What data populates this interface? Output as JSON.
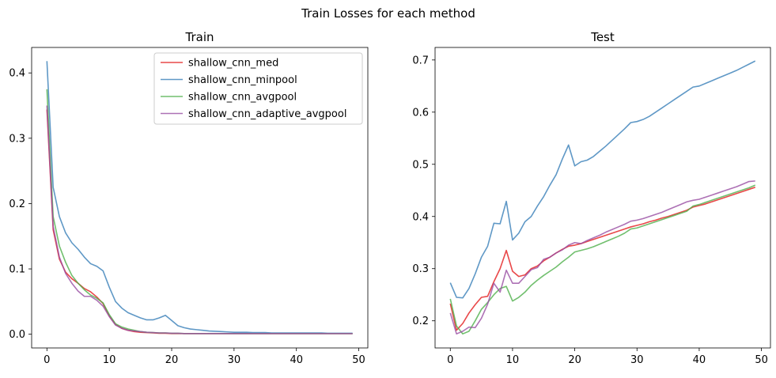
{
  "suptitle": "Train Losses for each method",
  "chart_data": [
    {
      "type": "line",
      "title": "Train",
      "xlabel": "",
      "ylabel": "",
      "xlim": [
        -2.45,
        51.45
      ],
      "ylim": [
        -0.021,
        0.439
      ],
      "x_ticks": [
        0,
        10,
        20,
        30,
        40,
        50
      ],
      "y_ticks": [
        0.0,
        0.1,
        0.2,
        0.3,
        0.4
      ],
      "y_tick_labels": [
        "0.0",
        "0.1",
        "0.2",
        "0.3",
        "0.4"
      ],
      "legend_position": "top-right",
      "grid": false,
      "series": [
        {
          "name": "shallow_cnn_med",
          "color": "#e41a1c",
          "values": [
            0.344,
            0.16,
            0.115,
            0.095,
            0.085,
            0.078,
            0.07,
            0.065,
            0.057,
            0.047,
            0.028,
            0.015,
            0.009,
            0.006,
            0.004,
            0.003,
            0.0025,
            0.002,
            0.0015,
            0.0015,
            0.001,
            0.001,
            0.001,
            0.001,
            0.001,
            0.001,
            0.001,
            0.001,
            0.001,
            0.001,
            0.001,
            0.001,
            0.001,
            0.001,
            0.001,
            0.001,
            0.001,
            0.001,
            0.001,
            0.001,
            0.001,
            0.001,
            0.001,
            0.001,
            0.001,
            0.001,
            0.001,
            0.001,
            0.001,
            0.001
          ]
        },
        {
          "name": "shallow_cnn_minpool",
          "color": "#377eb8",
          "values": [
            0.418,
            0.225,
            0.18,
            0.155,
            0.14,
            0.13,
            0.118,
            0.108,
            0.104,
            0.097,
            0.072,
            0.05,
            0.04,
            0.033,
            0.029,
            0.025,
            0.022,
            0.022,
            0.025,
            0.029,
            0.021,
            0.013,
            0.01,
            0.008,
            0.007,
            0.006,
            0.005,
            0.0045,
            0.004,
            0.0035,
            0.003,
            0.003,
            0.003,
            0.0025,
            0.0025,
            0.0025,
            0.002,
            0.002,
            0.002,
            0.002,
            0.002,
            0.002,
            0.002,
            0.002,
            0.002,
            0.0015,
            0.0015,
            0.0015,
            0.0015,
            0.0015
          ]
        },
        {
          "name": "shallow_cnn_avgpool",
          "color": "#4daf4a",
          "values": [
            0.375,
            0.18,
            0.135,
            0.11,
            0.09,
            0.078,
            0.068,
            0.06,
            0.055,
            0.048,
            0.03,
            0.016,
            0.011,
            0.008,
            0.006,
            0.004,
            0.003,
            0.0025,
            0.002,
            0.002,
            0.0015,
            0.0015,
            0.001,
            0.001,
            0.001,
            0.001,
            0.001,
            0.001,
            0.001,
            0.001,
            0.001,
            0.001,
            0.001,
            0.001,
            0.001,
            0.001,
            0.001,
            0.001,
            0.001,
            0.001,
            0.001,
            0.001,
            0.001,
            0.001,
            0.001,
            0.001,
            0.001,
            0.001,
            0.001,
            0.001
          ]
        },
        {
          "name": "shallow_cnn_adaptive_avgpool",
          "color": "#984ea3",
          "values": [
            0.35,
            0.165,
            0.118,
            0.093,
            0.078,
            0.066,
            0.058,
            0.058,
            0.052,
            0.043,
            0.027,
            0.014,
            0.009,
            0.006,
            0.005,
            0.004,
            0.003,
            0.0025,
            0.002,
            0.002,
            0.0015,
            0.0015,
            0.001,
            0.001,
            0.001,
            0.001,
            0.001,
            0.001,
            0.001,
            0.001,
            0.001,
            0.001,
            0.001,
            0.001,
            0.001,
            0.001,
            0.001,
            0.001,
            0.001,
            0.001,
            0.001,
            0.001,
            0.001,
            0.001,
            0.001,
            0.001,
            0.001,
            0.001,
            0.001,
            0.001
          ]
        }
      ]
    },
    {
      "type": "line",
      "title": "Test",
      "xlabel": "",
      "ylabel": "",
      "xlim": [
        -2.45,
        51.45
      ],
      "ylim": [
        0.148,
        0.724
      ],
      "x_ticks": [
        0,
        10,
        20,
        30,
        40,
        50
      ],
      "y_ticks": [
        0.2,
        0.3,
        0.4,
        0.5,
        0.6,
        0.7
      ],
      "y_tick_labels": [
        "0.2",
        "0.3",
        "0.4",
        "0.5",
        "0.6",
        "0.7"
      ],
      "grid": false,
      "series": [
        {
          "name": "shallow_cnn_med",
          "color": "#e41a1c",
          "values": [
            0.233,
            0.182,
            0.195,
            0.215,
            0.231,
            0.245,
            0.247,
            0.275,
            0.3,
            0.335,
            0.295,
            0.285,
            0.288,
            0.3,
            0.305,
            0.315,
            0.322,
            0.33,
            0.337,
            0.343,
            0.345,
            0.348,
            0.352,
            0.356,
            0.36,
            0.364,
            0.368,
            0.372,
            0.376,
            0.38,
            0.383,
            0.386,
            0.39,
            0.393,
            0.397,
            0.4,
            0.404,
            0.408,
            0.412,
            0.418,
            0.421,
            0.424,
            0.428,
            0.432,
            0.436,
            0.44,
            0.444,
            0.448,
            0.452,
            0.456
          ]
        },
        {
          "name": "shallow_cnn_minpool",
          "color": "#377eb8",
          "values": [
            0.273,
            0.245,
            0.244,
            0.262,
            0.29,
            0.322,
            0.343,
            0.387,
            0.386,
            0.429,
            0.355,
            0.368,
            0.39,
            0.4,
            0.42,
            0.438,
            0.46,
            0.48,
            0.51,
            0.537,
            0.497,
            0.505,
            0.508,
            0.515,
            0.525,
            0.535,
            0.546,
            0.557,
            0.568,
            0.58,
            0.582,
            0.586,
            0.592,
            0.6,
            0.608,
            0.616,
            0.624,
            0.632,
            0.64,
            0.648,
            0.65,
            0.655,
            0.66,
            0.665,
            0.67,
            0.675,
            0.68,
            0.686,
            0.692,
            0.698
          ]
        },
        {
          "name": "shallow_cnn_avgpool",
          "color": "#4daf4a",
          "values": [
            0.242,
            0.19,
            0.175,
            0.18,
            0.2,
            0.222,
            0.235,
            0.25,
            0.262,
            0.266,
            0.238,
            0.245,
            0.255,
            0.268,
            0.278,
            0.287,
            0.295,
            0.303,
            0.313,
            0.322,
            0.332,
            0.335,
            0.338,
            0.342,
            0.347,
            0.352,
            0.357,
            0.362,
            0.368,
            0.376,
            0.378,
            0.382,
            0.386,
            0.39,
            0.394,
            0.398,
            0.402,
            0.406,
            0.41,
            0.42,
            0.423,
            0.427,
            0.431,
            0.435,
            0.439,
            0.443,
            0.447,
            0.451,
            0.455,
            0.46
          ]
        },
        {
          "name": "shallow_cnn_adaptive_avgpool",
          "color": "#984ea3",
          "values": [
            0.215,
            0.175,
            0.18,
            0.188,
            0.187,
            0.205,
            0.232,
            0.272,
            0.255,
            0.297,
            0.272,
            0.272,
            0.285,
            0.298,
            0.302,
            0.318,
            0.322,
            0.33,
            0.336,
            0.345,
            0.35,
            0.348,
            0.354,
            0.359,
            0.364,
            0.37,
            0.375,
            0.38,
            0.385,
            0.391,
            0.393,
            0.396,
            0.4,
            0.404,
            0.408,
            0.413,
            0.418,
            0.423,
            0.428,
            0.431,
            0.433,
            0.437,
            0.441,
            0.445,
            0.449,
            0.453,
            0.457,
            0.462,
            0.467,
            0.468
          ]
        }
      ]
    }
  ]
}
